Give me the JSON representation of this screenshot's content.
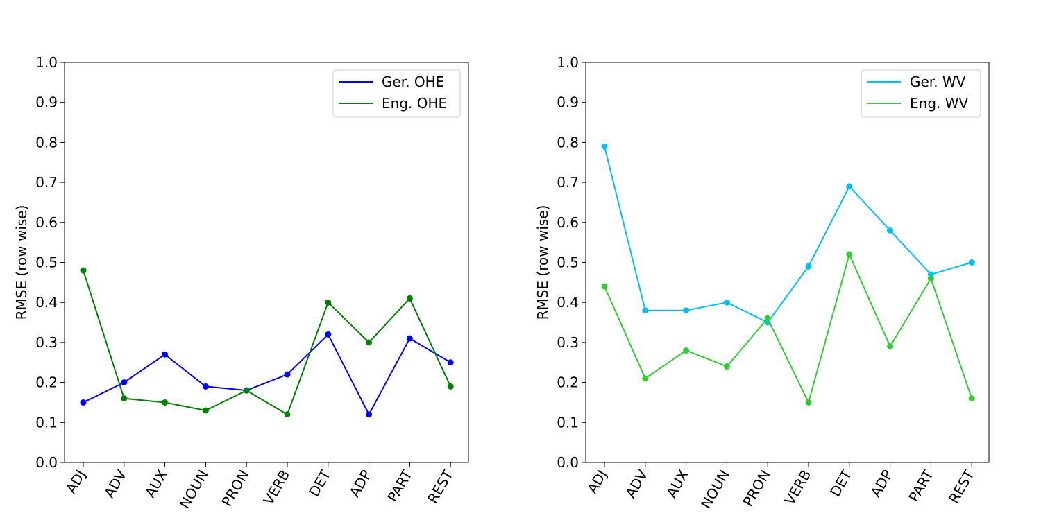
{
  "chart_data": [
    {
      "type": "line",
      "categories": [
        "ADJ",
        "ADV",
        "AUX",
        "NOUN",
        "PRON",
        "VERB",
        "DET",
        "ADP",
        "PART",
        "REST"
      ],
      "ylabel": "RMSE (row wise)",
      "ylim": [
        0.0,
        1.0
      ],
      "yticks": [
        "0.0",
        "0.1",
        "0.2",
        "0.3",
        "0.4",
        "0.5",
        "0.6",
        "0.7",
        "0.8",
        "0.9",
        "1.0"
      ],
      "grid": false,
      "legend_position": "top-right",
      "series": [
        {
          "name": "Ger. OHE",
          "color": "#0000ff",
          "values": [
            0.15,
            0.2,
            0.27,
            0.19,
            0.18,
            0.22,
            0.32,
            0.12,
            0.31,
            0.25
          ]
        },
        {
          "name": "Eng. OHE",
          "color": "#008000",
          "values": [
            0.48,
            0.16,
            0.15,
            0.13,
            0.18,
            0.12,
            0.4,
            0.3,
            0.41,
            0.19
          ]
        }
      ]
    },
    {
      "type": "line",
      "categories": [
        "ADJ",
        "ADV",
        "AUX",
        "NOUN",
        "PRON",
        "VERB",
        "DET",
        "ADP",
        "PART",
        "REST"
      ],
      "ylabel": "RMSE (row wise)",
      "ylim": [
        0.0,
        1.0
      ],
      "yticks": [
        "0.0",
        "0.1",
        "0.2",
        "0.3",
        "0.4",
        "0.5",
        "0.6",
        "0.7",
        "0.8",
        "0.9",
        "1.0"
      ],
      "grid": false,
      "legend_position": "top-right",
      "series": [
        {
          "name": "Ger. WV",
          "color": "#00bfff",
          "values": [
            0.79,
            0.38,
            0.38,
            0.4,
            0.35,
            0.49,
            0.69,
            0.58,
            0.47,
            0.5
          ]
        },
        {
          "name": "Eng. WV",
          "color": "#32cd32",
          "values": [
            0.44,
            0.21,
            0.28,
            0.24,
            0.36,
            0.15,
            0.52,
            0.29,
            0.46,
            0.16
          ]
        }
      ]
    }
  ]
}
